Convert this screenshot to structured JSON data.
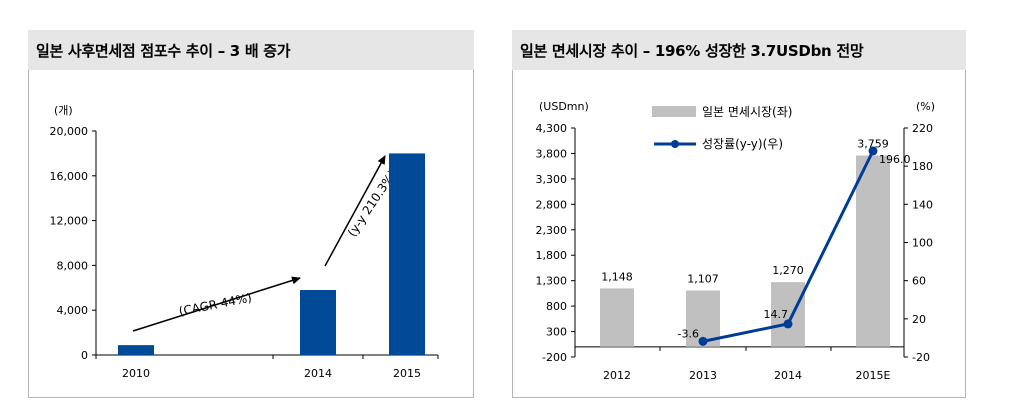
{
  "charts": {
    "left": {
      "title": "일본 사후면세점 점포수 추이 – 3 배 증가",
      "unit_label": "(개)",
      "annotation_cagr": "(CAGR 44%)",
      "annotation_yy": "(y-y 210.3%)",
      "bar_color": "#004a97"
    },
    "right": {
      "title": "일본 면세시장 추이 – 196%  성장한 3.7USDbn 전망",
      "left_unit": "(USDmn)",
      "right_unit": "(%)",
      "legend_bar": "일본 면세시장(좌)",
      "legend_line": "성장률(y-y)(우)",
      "bar_color": "#c0c0c0",
      "line_color": "#003c96"
    }
  },
  "chart_data": [
    {
      "type": "bar",
      "title": "일본 사후면세점 점포수 추이 – 3 배 증가",
      "ylabel": "(개)",
      "categories": [
        "2010",
        "2014",
        "2015"
      ],
      "values": [
        880,
        5800,
        18000
      ],
      "ylim": [
        0,
        20000
      ],
      "yticks": [
        "0",
        "4,000",
        "8,000",
        "12,000",
        "16,000",
        "20,000"
      ],
      "grid": false
    },
    {
      "type": "bar+line",
      "title": "일본 면세시장 추이 – 196%  성장한 3.7USDbn 전망",
      "categories": [
        "2012",
        "2013",
        "2014",
        "2015E"
      ],
      "series": [
        {
          "name": "일본 면세시장(좌)",
          "axis": "left",
          "type": "bar",
          "values": [
            1148,
            1107,
            1270,
            3759
          ],
          "labels": [
            "1,148",
            "1,107",
            "1,270",
            "3,759"
          ]
        },
        {
          "name": "성장률(y-y)(우)",
          "axis": "right",
          "type": "line",
          "values": [
            null,
            -3.6,
            14.7,
            196.0
          ],
          "labels": [
            "",
            "-3.6",
            "14.7",
            "196.0"
          ]
        }
      ],
      "ylabel_left": "(USDmn)",
      "ylabel_right": "(%)",
      "ylim_left": [
        -200,
        4300
      ],
      "yticks_left": [
        "-200",
        "300",
        "800",
        "1,300",
        "1,800",
        "2,300",
        "2,800",
        "3,300",
        "3,800",
        "4,300"
      ],
      "ylim_right": [
        -20,
        220
      ],
      "yticks_right": [
        "-20",
        "20",
        "60",
        "100",
        "140",
        "180",
        "220"
      ],
      "legend": "top-left",
      "grid": false
    }
  ]
}
